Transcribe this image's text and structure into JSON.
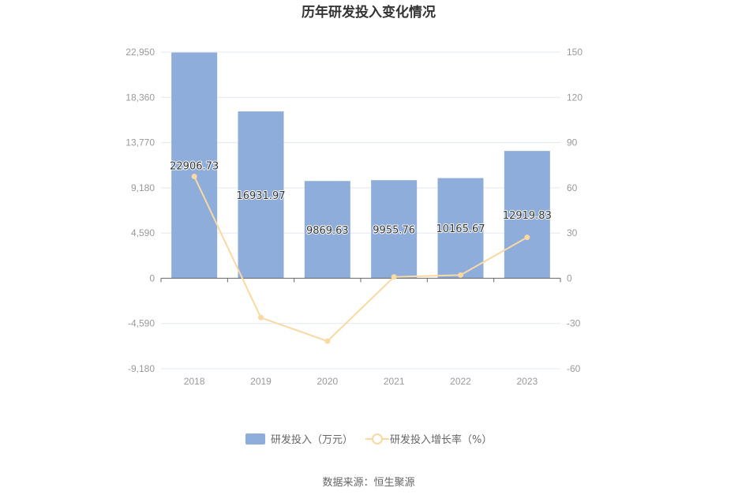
{
  "chart_data": {
    "type": "bar",
    "title": "历年研发投入变化情况",
    "categories": [
      "2018",
      "2019",
      "2020",
      "2021",
      "2022",
      "2023"
    ],
    "series": [
      {
        "name": "研发投入（万元）",
        "type": "bar",
        "axis": "left",
        "values": [
          22906.73,
          16931.97,
          9869.63,
          9955.76,
          10165.67,
          12919.83
        ],
        "labels": [
          "22906.73",
          "16931.97",
          "9869.63",
          "9955.76",
          "10165.67",
          "12919.83"
        ]
      },
      {
        "name": "研发投入增长率（%）",
        "type": "line",
        "axis": "right",
        "values": [
          67.5,
          -26.1,
          -41.7,
          0.9,
          2.1,
          27.1
        ]
      }
    ],
    "y_left": {
      "ylim": [
        -9180,
        22950
      ],
      "ticks": [
        -9180,
        -4590,
        0,
        4590,
        9180,
        13770,
        18360,
        22950
      ],
      "tick_labels": [
        "-9,180",
        "-4,590",
        "0",
        "4,590",
        "9,180",
        "13,770",
        "18,360",
        "22,950"
      ]
    },
    "y_right": {
      "ylim": [
        -60,
        150
      ],
      "ticks": [
        -60,
        -30,
        0,
        30,
        60,
        90,
        120,
        150
      ],
      "tick_labels": [
        "-60",
        "-30",
        "0",
        "30",
        "60",
        "90",
        "120",
        "150"
      ]
    },
    "grid": true,
    "legend_position": "bottom-center",
    "colors": {
      "bar": "#8eaddb",
      "line": "#f9d9a3",
      "grid": "#e3e8f0",
      "axis": "#666666"
    }
  },
  "source": "数据来源：恒生聚源"
}
